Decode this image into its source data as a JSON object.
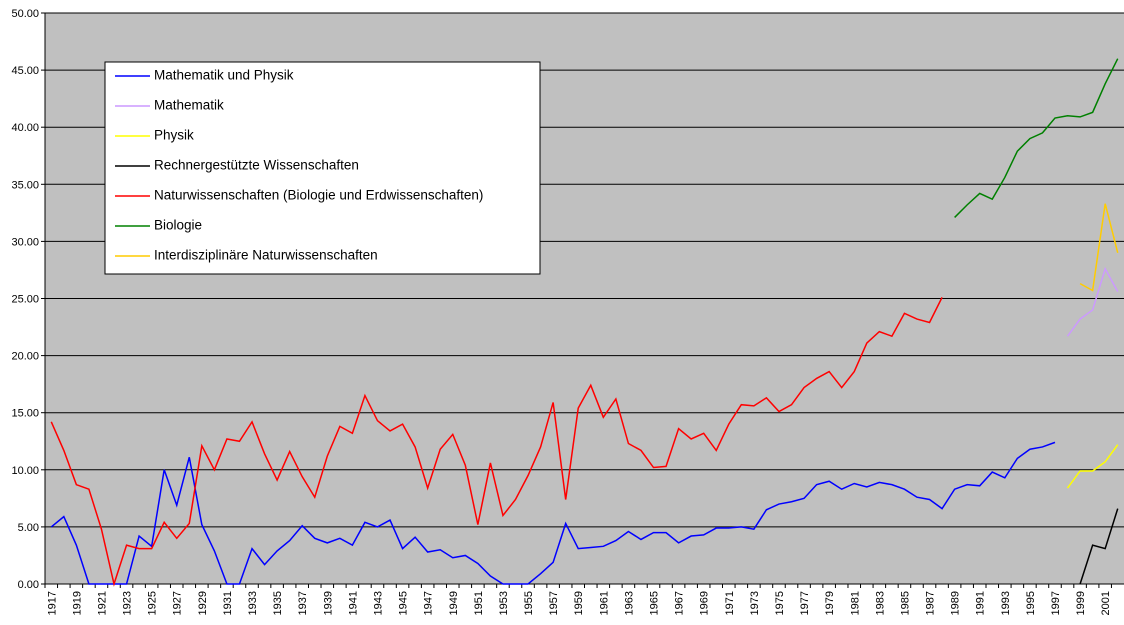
{
  "chart_data": {
    "type": "line",
    "categories": [
      "1917",
      null,
      "1919",
      null,
      "1921",
      null,
      "1923",
      null,
      "1925",
      null,
      "1927",
      null,
      "1929",
      null,
      "1931",
      null,
      "1933",
      null,
      "1935",
      null,
      "1937",
      null,
      "1939",
      null,
      "1941",
      null,
      "1943",
      null,
      "1945",
      null,
      "1947",
      null,
      "1949",
      null,
      "1951",
      null,
      "1953",
      null,
      "1955",
      null,
      "1957",
      null,
      "1959",
      null,
      "1961",
      null,
      "1963",
      null,
      "1965",
      null,
      "1967",
      null,
      "1969",
      null,
      "1971",
      null,
      "1973",
      null,
      "1975",
      null,
      "1977",
      null,
      "1979",
      null,
      "1981",
      null,
      "1983",
      null,
      "1985",
      null,
      "1987",
      null,
      "1989",
      null,
      "1991",
      null,
      "1993",
      null,
      "1995",
      null,
      "1997",
      null,
      "1999",
      null,
      "2001",
      null
    ],
    "series": [
      {
        "name": "Mathematik und Physik",
        "color": "#0000ff",
        "values": [
          5.0,
          5.9,
          3.4,
          0,
          0,
          0,
          0,
          4.2,
          3.3,
          10.0,
          6.9,
          11.1,
          5.2,
          2.9,
          0,
          0,
          3.1,
          1.7,
          2.9,
          3.8,
          5.1,
          4.0,
          3.6,
          4.0,
          3.4,
          5.4,
          5.0,
          5.6,
          3.1,
          4.1,
          2.8,
          3.0,
          2.3,
          2.5,
          1.8,
          0.7,
          0,
          0,
          0,
          0.9,
          1.9,
          5.3,
          3.1,
          3.2,
          3.3,
          3.8,
          4.6,
          3.9,
          4.5,
          4.5,
          3.6,
          4.2,
          4.3,
          4.9,
          4.9,
          5.0,
          4.8,
          6.5,
          7.0,
          7.2,
          7.5,
          8.7,
          9.0,
          8.3,
          8.8,
          8.5,
          8.9,
          8.7,
          8.3,
          7.6,
          7.4,
          6.6,
          8.3,
          8.7,
          8.6,
          9.8,
          9.3,
          11.0,
          11.8,
          12.0,
          12.4,
          null,
          null,
          null,
          null,
          null
        ]
      },
      {
        "name": "Mathematik",
        "color": "#cc99ff",
        "values": [
          null,
          null,
          null,
          null,
          null,
          null,
          null,
          null,
          null,
          null,
          null,
          null,
          null,
          null,
          null,
          null,
          null,
          null,
          null,
          null,
          null,
          null,
          null,
          null,
          null,
          null,
          null,
          null,
          null,
          null,
          null,
          null,
          null,
          null,
          null,
          null,
          null,
          null,
          null,
          null,
          null,
          null,
          null,
          null,
          null,
          null,
          null,
          null,
          null,
          null,
          null,
          null,
          null,
          null,
          null,
          null,
          null,
          null,
          null,
          null,
          null,
          null,
          null,
          null,
          null,
          null,
          null,
          null,
          null,
          null,
          null,
          null,
          null,
          null,
          null,
          null,
          null,
          null,
          null,
          null,
          null,
          21.7,
          23.2,
          24.0,
          27.6,
          25.6
        ]
      },
      {
        "name": "Physik",
        "color": "#ffff00",
        "values": [
          null,
          null,
          null,
          null,
          null,
          null,
          null,
          null,
          null,
          null,
          null,
          null,
          null,
          null,
          null,
          null,
          null,
          null,
          null,
          null,
          null,
          null,
          null,
          null,
          null,
          null,
          null,
          null,
          null,
          null,
          null,
          null,
          null,
          null,
          null,
          null,
          null,
          null,
          null,
          null,
          null,
          null,
          null,
          null,
          null,
          null,
          null,
          null,
          null,
          null,
          null,
          null,
          null,
          null,
          null,
          null,
          null,
          null,
          null,
          null,
          null,
          null,
          null,
          null,
          null,
          null,
          null,
          null,
          null,
          null,
          null,
          null,
          null,
          null,
          null,
          null,
          null,
          null,
          null,
          null,
          null,
          8.4,
          9.9,
          9.9,
          10.7,
          12.2
        ]
      },
      {
        "name": "Rechnergestützte Wissenschaften",
        "color": "#000000",
        "values": [
          null,
          null,
          null,
          null,
          null,
          null,
          null,
          null,
          null,
          null,
          null,
          null,
          null,
          null,
          null,
          null,
          null,
          null,
          null,
          null,
          null,
          null,
          null,
          null,
          null,
          null,
          null,
          null,
          null,
          null,
          null,
          null,
          null,
          null,
          null,
          null,
          null,
          null,
          null,
          null,
          null,
          null,
          null,
          null,
          null,
          null,
          null,
          null,
          null,
          null,
          null,
          null,
          null,
          null,
          null,
          null,
          null,
          null,
          null,
          null,
          null,
          null,
          null,
          null,
          null,
          null,
          null,
          null,
          null,
          null,
          null,
          null,
          null,
          null,
          null,
          null,
          null,
          null,
          null,
          null,
          null,
          null,
          0,
          3.4,
          3.1,
          6.6
        ]
      },
      {
        "name": "Naturwissenschaften (Biologie und Erdwissenschaften)",
        "color": "#ff0000",
        "values": [
          14.2,
          11.7,
          8.7,
          8.3,
          4.8,
          0,
          3.4,
          3.1,
          3.1,
          5.4,
          4.0,
          5.3,
          12.1,
          10.0,
          12.7,
          12.5,
          14.2,
          11.4,
          9.1,
          11.6,
          9.4,
          7.6,
          11.2,
          13.8,
          13.2,
          16.5,
          14.3,
          13.4,
          14.0,
          12.0,
          8.4,
          11.8,
          13.1,
          10.4,
          5.2,
          10.6,
          6.0,
          7.4,
          9.5,
          12.0,
          15.9,
          7.4,
          15.4,
          17.4,
          14.6,
          16.2,
          12.3,
          11.7,
          10.2,
          10.3,
          13.6,
          12.7,
          13.2,
          11.7,
          14.0,
          15.7,
          15.6,
          16.3,
          15.1,
          15.7,
          17.2,
          18.0,
          18.6,
          17.2,
          18.6,
          21.1,
          22.1,
          21.7,
          23.7,
          23.2,
          22.9,
          25.1,
          null,
          null,
          null,
          null,
          null,
          null,
          null,
          null,
          null,
          null,
          null,
          null,
          null,
          null
        ]
      },
      {
        "name": "Biologie",
        "color": "#008000",
        "values": [
          null,
          null,
          null,
          null,
          null,
          null,
          null,
          null,
          null,
          null,
          null,
          null,
          null,
          null,
          null,
          null,
          null,
          null,
          null,
          null,
          null,
          null,
          null,
          null,
          null,
          null,
          null,
          null,
          null,
          null,
          null,
          null,
          null,
          null,
          null,
          null,
          null,
          null,
          null,
          null,
          null,
          null,
          null,
          null,
          null,
          null,
          null,
          null,
          null,
          null,
          null,
          null,
          null,
          null,
          null,
          null,
          null,
          null,
          null,
          null,
          null,
          null,
          null,
          null,
          null,
          null,
          null,
          null,
          null,
          null,
          null,
          null,
          32.1,
          33.2,
          34.2,
          33.7,
          35.6,
          37.9,
          39.0,
          39.5,
          40.8,
          41.0,
          40.9,
          41.3,
          43.8,
          46.0
        ]
      },
      {
        "name": "Interdisziplinäre Naturwissenschaften",
        "color": "#ffcc00",
        "values": [
          null,
          null,
          null,
          null,
          null,
          null,
          null,
          null,
          null,
          null,
          null,
          null,
          null,
          null,
          null,
          null,
          null,
          null,
          null,
          null,
          null,
          null,
          null,
          null,
          null,
          null,
          null,
          null,
          null,
          null,
          null,
          null,
          null,
          null,
          null,
          null,
          null,
          null,
          null,
          null,
          null,
          null,
          null,
          null,
          null,
          null,
          null,
          null,
          null,
          null,
          null,
          null,
          null,
          null,
          null,
          null,
          null,
          null,
          null,
          null,
          null,
          null,
          null,
          null,
          null,
          null,
          null,
          null,
          null,
          null,
          null,
          null,
          null,
          null,
          null,
          null,
          null,
          null,
          null,
          null,
          null,
          null,
          26.3,
          25.7,
          33.3,
          29.0
        ]
      }
    ],
    "ylim": [
      0,
      50
    ],
    "yticks": [
      {
        "value": 0,
        "label": "0.00"
      },
      {
        "value": 5,
        "label": "5.00"
      },
      {
        "value": 10,
        "label": "10.00"
      },
      {
        "value": 15,
        "label": "15.00"
      },
      {
        "value": 20,
        "label": "20.00"
      },
      {
        "value": 25,
        "label": "25.00"
      },
      {
        "value": 30,
        "label": "30.00"
      },
      {
        "value": 35,
        "label": "35.00"
      },
      {
        "value": 40,
        "label": "40.00"
      },
      {
        "value": 45,
        "label": "45.00"
      },
      {
        "value": 50,
        "label": "50.00"
      }
    ],
    "grid": true,
    "background": "#c0c0c0",
    "legend": "upper left"
  }
}
